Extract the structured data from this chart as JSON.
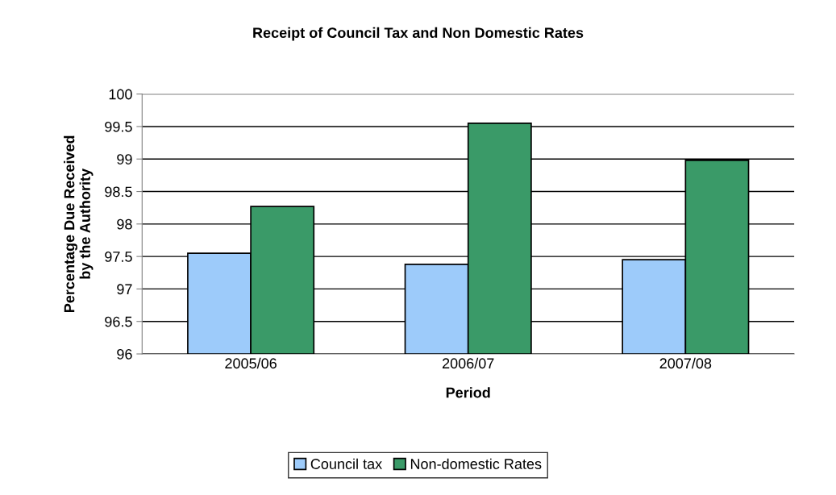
{
  "chart_data": {
    "type": "bar",
    "title": "Receipt of Council Tax and Non Domestic Rates",
    "xlabel": "Period",
    "ylabel": "Percentage Due Received\nby the Authority",
    "categories": [
      "2005/06",
      "2006/07",
      "2007/08"
    ],
    "series": [
      {
        "name": "Council tax",
        "color": "#9dcbfa",
        "values": [
          97.55,
          97.38,
          97.45
        ]
      },
      {
        "name": "Non-domestic Rates",
        "color": "#3a9a68",
        "values": [
          98.27,
          99.55,
          98.98
        ]
      }
    ],
    "ylim": [
      96,
      100
    ],
    "yticks": [
      96,
      96.5,
      97,
      97.5,
      98,
      98.5,
      99,
      99.5,
      100
    ],
    "grid": "y",
    "legend": "bottom"
  }
}
